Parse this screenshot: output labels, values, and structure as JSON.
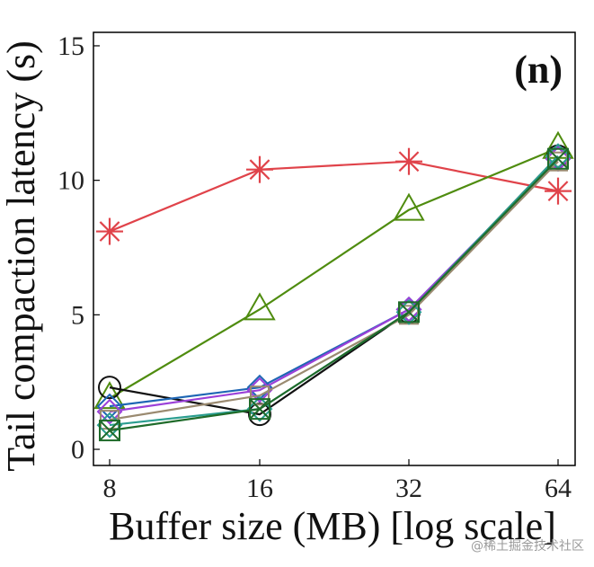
{
  "chart_data": {
    "type": "line",
    "panel_label": "(n)",
    "xlabel": "Buffer size (MB) [log scale]",
    "ylabel": "Tail compaction latency (s)",
    "x_scale": "log2",
    "x": [
      8,
      16,
      32,
      64
    ],
    "x_tick_labels": [
      "8",
      "16",
      "32",
      "64"
    ],
    "y_ticks": [
      0,
      5,
      10,
      15
    ],
    "y_tick_labels": [
      "0",
      "5",
      "10",
      "15"
    ],
    "ylim": [
      -0.6,
      15.5
    ],
    "grid": false,
    "series": [
      {
        "color": "#e0434a",
        "marker": "asterisk",
        "values": [
          8.1,
          10.4,
          10.7,
          9.6
        ]
      },
      {
        "color": "#4f8c0f",
        "marker": "triangle",
        "values": [
          1.9,
          5.2,
          8.9,
          11.2
        ]
      },
      {
        "color": "#111111",
        "marker": "circle",
        "values": [
          2.3,
          1.3,
          5.1,
          10.9
        ]
      },
      {
        "color": "#1e66b4",
        "marker": "diamond",
        "values": [
          1.6,
          2.3,
          5.2,
          10.8
        ]
      },
      {
        "color": "#9b40d8",
        "marker": "diamond",
        "values": [
          1.4,
          2.2,
          5.2,
          10.8
        ]
      },
      {
        "color": "#9a8a70",
        "marker": "square",
        "values": [
          1.1,
          2.0,
          5.0,
          10.7
        ]
      },
      {
        "color": "#2a9d8f",
        "marker": "diamond",
        "values": [
          0.9,
          1.5,
          5.1,
          10.9
        ]
      },
      {
        "color": "#1f6b2a",
        "marker": "square-x",
        "values": [
          0.7,
          1.5,
          5.1,
          10.8
        ]
      }
    ]
  },
  "watermark": "@稀土掘金技术社区"
}
